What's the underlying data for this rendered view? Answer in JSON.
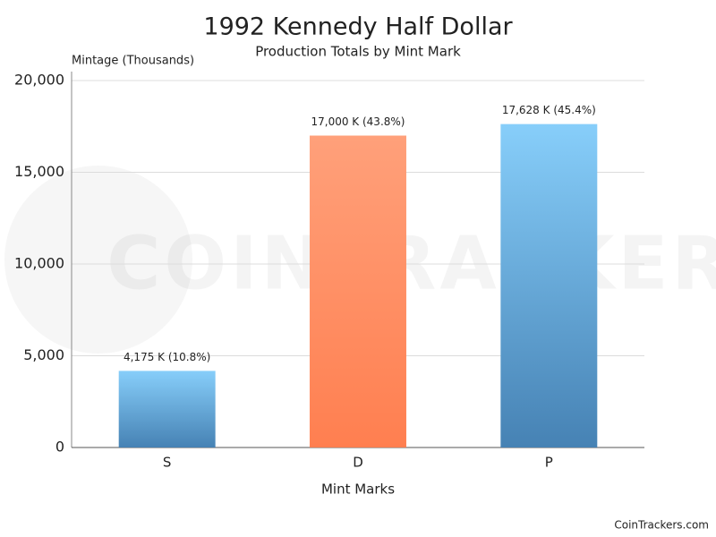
{
  "chart_data": {
    "type": "bar",
    "title": "1992 Kennedy Half Dollar",
    "subtitle": "Production Totals by Mint Mark",
    "y_label": "Mintage (Thousands)",
    "x_label": "Mint Marks",
    "categories": [
      "S",
      "D",
      "P"
    ],
    "values": [
      4175,
      17000,
      17628
    ],
    "value_labels": [
      "4,175 K (10.8%)",
      "17,000 K (43.8%)",
      "17,628 K (45.4%)"
    ],
    "colors": [
      "#4682b4",
      "#ff7f50",
      "#4682b4"
    ],
    "gradient_top_colors": [
      "#87cefa",
      "#ffa07a",
      "#87cefa"
    ],
    "ylim": [
      0,
      20000
    ],
    "yticks": [
      0,
      {
        "value": 5000,
        "label": "5,000"
      },
      {
        "value": 10000,
        "label": "10,000"
      },
      {
        "value": 15000,
        "label": "15,000"
      },
      {
        "value": 20000,
        "label": "20,000"
      }
    ],
    "grid": true,
    "watermark": "COINTRACKERS",
    "footer": "CoinTrackers.com"
  }
}
